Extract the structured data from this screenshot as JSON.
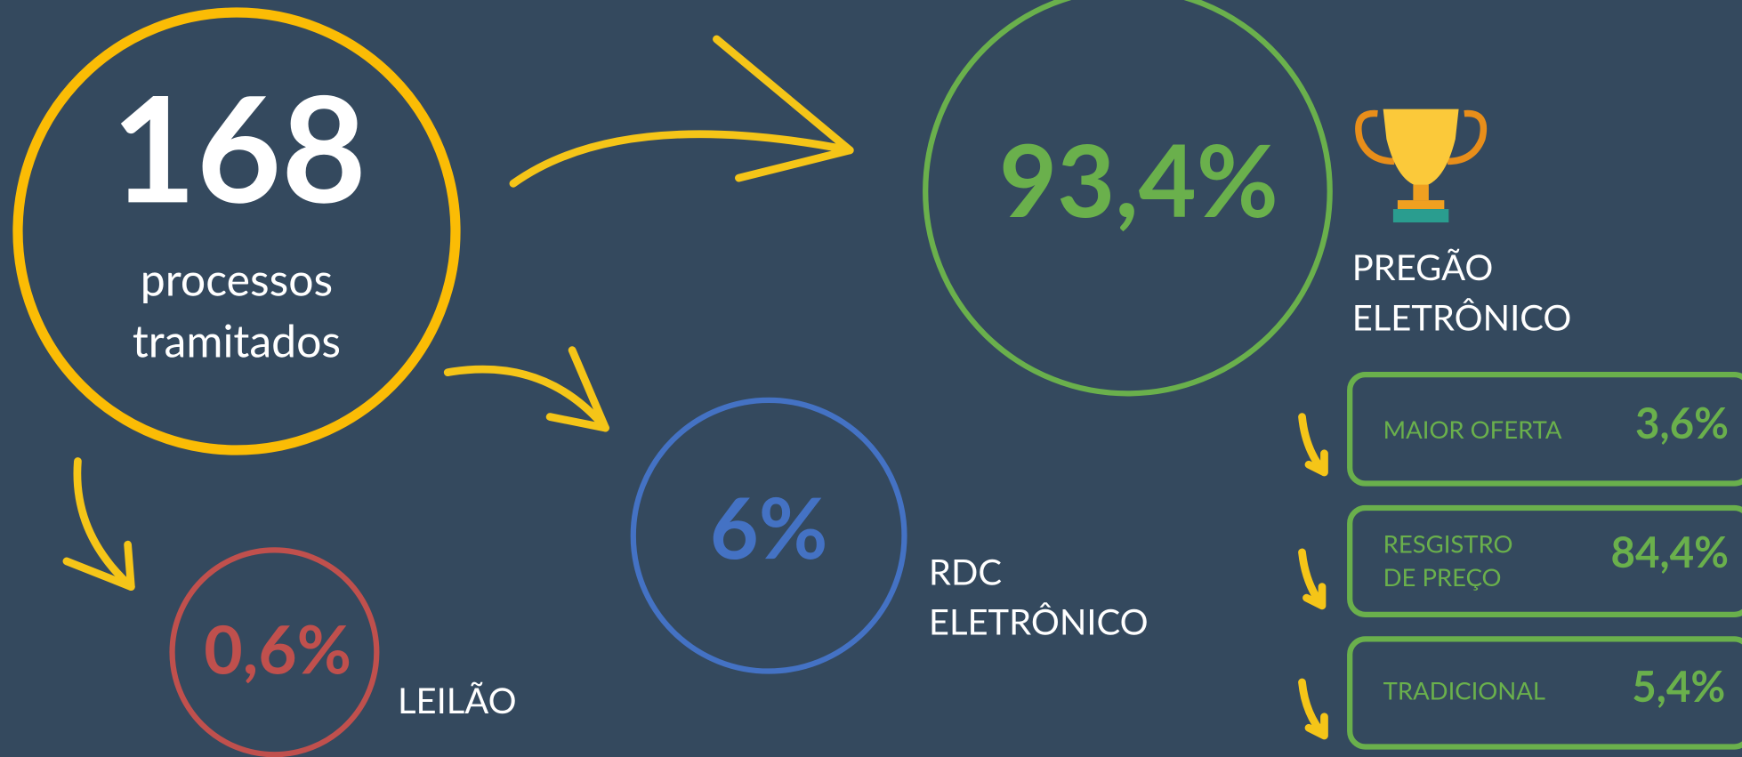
{
  "total": {
    "number": "168",
    "label_lines": [
      "processos",
      "tramitados"
    ]
  },
  "categories": [
    {
      "percent": "93,4%",
      "label_lines": [
        "PREGÃO",
        "ELETRÔNICO"
      ]
    },
    {
      "percent": "6%",
      "label_lines": [
        "RDC",
        "ELETRÔNICO"
      ]
    },
    {
      "percent": "0,6%",
      "label_lines": [
        "LEILÃO"
      ]
    }
  ],
  "subcategories": [
    {
      "label_lines": [
        "MAIOR OFERTA"
      ],
      "percent": "3,6%"
    },
    {
      "label_lines": [
        "RESGISTRO",
        "DE PREÇO"
      ],
      "percent": "84,4%"
    },
    {
      "label_lines": [
        "TRADICIONAL"
      ],
      "percent": "5,4%"
    }
  ]
}
